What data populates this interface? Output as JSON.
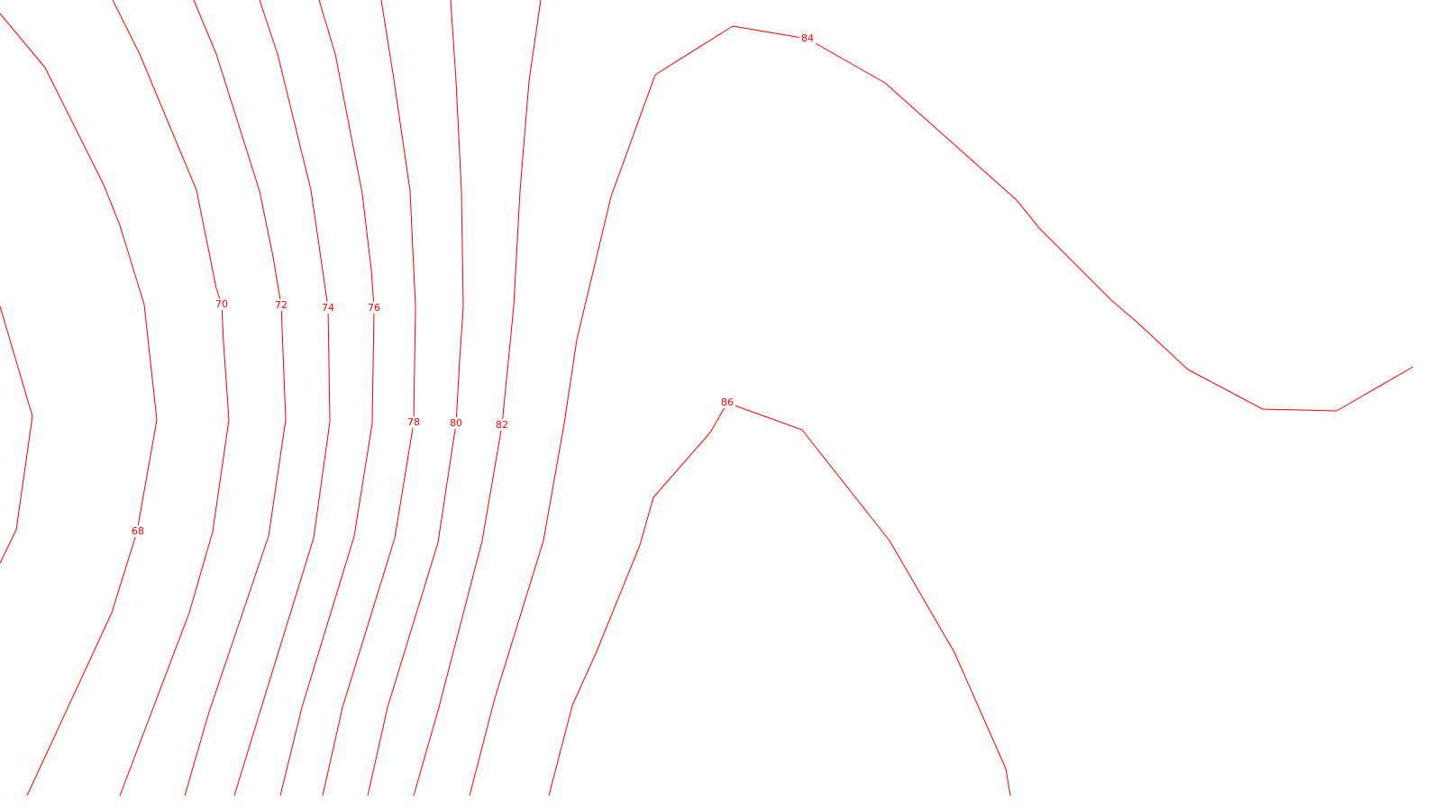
{
  "line_color": "#ff0000",
  "background_color": "#ffffff",
  "chart_data": {
    "type": "contour",
    "title": "",
    "xlabel": "",
    "ylabel": "",
    "axes_visible": false,
    "grid": false,
    "legend": "none",
    "levels": [
      68,
      70,
      72,
      74,
      76,
      78,
      80,
      82,
      84,
      86
    ],
    "level_labels": [
      {
        "level": 68,
        "text": "68"
      },
      {
        "level": 70,
        "text": "70"
      },
      {
        "level": 72,
        "text": "72"
      },
      {
        "level": 74,
        "text": "74"
      },
      {
        "level": 76,
        "text": "76"
      },
      {
        "level": 78,
        "text": "78"
      },
      {
        "level": 80,
        "text": "80"
      },
      {
        "level": 82,
        "text": "82"
      },
      {
        "level": 84,
        "text": "84"
      },
      {
        "level": 86,
        "text": "86"
      }
    ],
    "trend": "values increase from left to right, peaking at 86 in the center-right region"
  }
}
